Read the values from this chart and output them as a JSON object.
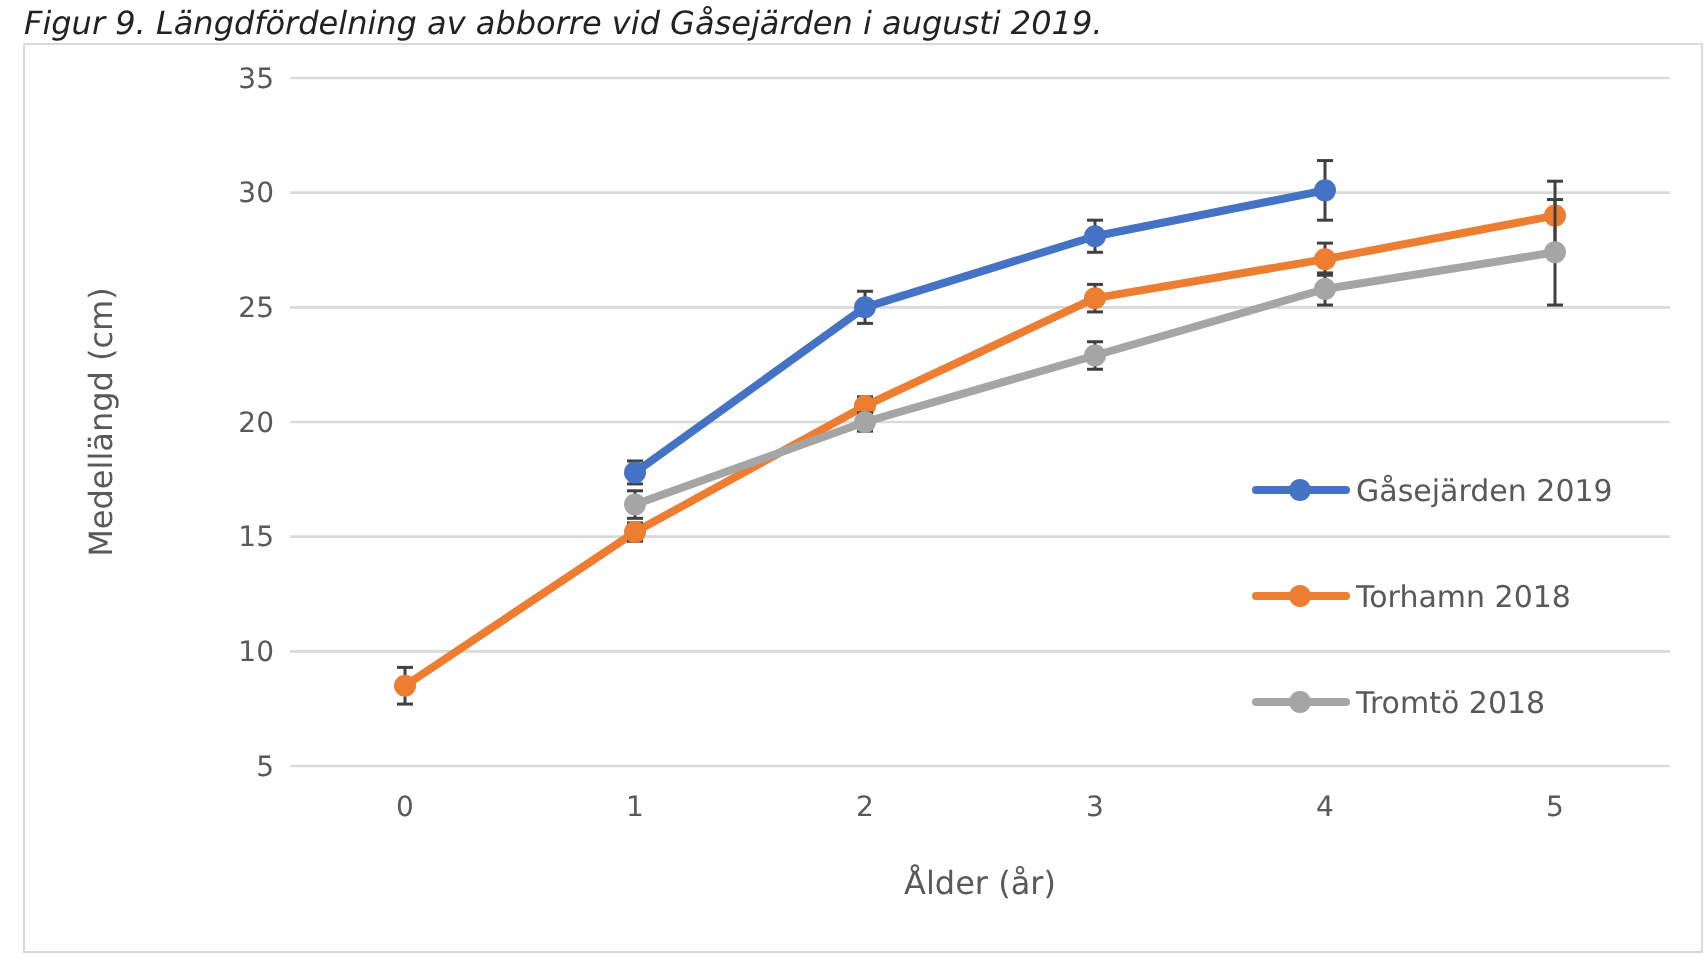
{
  "chart_data": {
    "type": "line",
    "title": "Figur 9. Längdfördelning av abborre vid Gåsejärden i augusti 2019.",
    "xlabel": "Ålder (år)",
    "ylabel": "Medellängd (cm)",
    "categories": [
      "0",
      "1",
      "2",
      "3",
      "4",
      "5"
    ],
    "series": [
      {
        "name": "Gåsejärden 2019",
        "color": "#4472c4",
        "values": [
          null,
          17.8,
          25.0,
          28.1,
          30.1,
          null
        ],
        "errors": [
          null,
          0.5,
          0.7,
          0.7,
          1.3,
          null
        ]
      },
      {
        "name": "Torhamn 2018",
        "color": "#ed7d31",
        "values": [
          8.5,
          15.2,
          20.7,
          25.4,
          27.1,
          29.0
        ],
        "errors": [
          0.8,
          0.4,
          0.4,
          0.6,
          0.7,
          1.5
        ]
      },
      {
        "name": "Tromtö 2018",
        "color": "#a5a5a5",
        "values": [
          null,
          16.4,
          20.0,
          22.9,
          25.8,
          27.4
        ],
        "errors": [
          null,
          0.6,
          0.4,
          0.6,
          0.7,
          2.3
        ]
      }
    ],
    "ylim": [
      5,
      35
    ],
    "yticks": [
      5,
      10,
      15,
      20,
      25,
      30,
      35
    ],
    "grid": "y",
    "legend": "right",
    "marker": "circle",
    "line_style": "solid"
  }
}
